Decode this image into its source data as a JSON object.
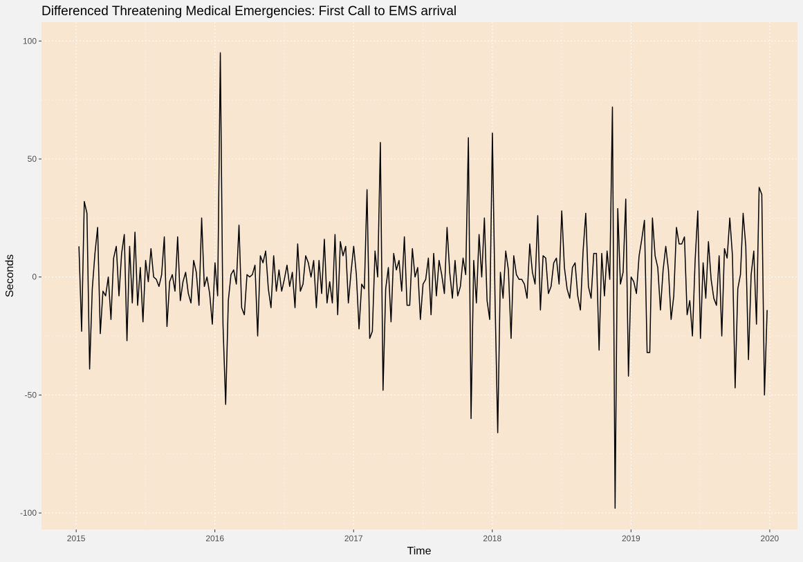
{
  "chart_data": {
    "type": "line",
    "title": "Differenced Threatening Medical Emergencies: First Call to EMS arrival",
    "xlabel": "Time",
    "ylabel": "Seconds",
    "xlim": [
      2014.75,
      2020.2
    ],
    "ylim": [
      -107,
      108
    ],
    "x_ticks": [
      2015,
      2016,
      2017,
      2018,
      2019,
      2020
    ],
    "x_tick_labels": [
      "2015",
      "2016",
      "2017",
      "2018",
      "2019",
      "2020"
    ],
    "y_ticks": [
      100,
      50,
      0,
      -50,
      -100
    ],
    "y_tick_labels": [
      "100",
      "50",
      "0",
      "-50",
      "-100"
    ],
    "grid": true,
    "legend": "none",
    "colors": {
      "panel_background": "#f8e6d1",
      "page_background": "#f2f2f2",
      "grid": "#ffffff",
      "line": "#000000"
    },
    "series": [
      {
        "x_start": 2015.02,
        "x_step": 0.01923,
        "values": [
          13,
          -23,
          32,
          27,
          -39,
          -5,
          10,
          21,
          -24,
          -6,
          -8,
          0,
          -18,
          8,
          13,
          -8,
          10,
          18,
          -27,
          13,
          -11,
          19,
          -12,
          4,
          -19,
          7,
          -2,
          12,
          0,
          -1,
          -4,
          1,
          17,
          -21,
          -2,
          1,
          -6,
          17,
          -10,
          -2,
          2,
          -7,
          -11,
          7,
          2,
          -12,
          25,
          -4,
          0,
          -7,
          -20,
          6,
          -8,
          95,
          -20,
          -54,
          -10,
          1,
          3,
          -3,
          22,
          -13,
          -16,
          1,
          0,
          1,
          5,
          -25,
          9,
          6,
          11,
          -5,
          -13,
          9,
          -6,
          3,
          -6,
          -1,
          5,
          -4,
          2,
          -13,
          14,
          -6,
          -3,
          9,
          6,
          0,
          7,
          -13,
          7,
          -7,
          16,
          -11,
          -2,
          -11,
          18,
          -16,
          15,
          9,
          13,
          -11,
          2,
          13,
          1,
          -22,
          -3,
          -5,
          37,
          -26,
          -23,
          11,
          0,
          57,
          -48,
          -5,
          4,
          -19,
          10,
          3,
          7,
          -6,
          17,
          -12,
          -12,
          12,
          0,
          4,
          -18,
          -3,
          -1,
          8,
          -16,
          10,
          -8,
          7,
          1,
          -7,
          21,
          2,
          -9,
          7,
          -8,
          -4,
          8,
          1,
          59,
          -60,
          7,
          -11,
          18,
          0,
          25,
          -10,
          -18,
          61,
          -10,
          -66,
          2,
          -9,
          11,
          3,
          -26,
          9,
          1,
          -1,
          -1,
          -3,
          -9,
          14,
          2,
          -3,
          26,
          -14,
          9,
          8,
          -7,
          -4,
          6,
          8,
          -3,
          28,
          4,
          -5,
          -9,
          4,
          6,
          -8,
          -14,
          11,
          27,
          -4,
          -9,
          10,
          10,
          -31,
          10,
          -8,
          11,
          -1,
          72,
          -98,
          29,
          -3,
          2,
          33,
          -42,
          0,
          -2,
          -7,
          9,
          16,
          24,
          -32,
          -32,
          25,
          9,
          4,
          -14,
          3,
          13,
          3,
          -18,
          -8,
          21,
          14,
          14,
          17,
          -16,
          -10,
          -25,
          7,
          28,
          -26,
          6,
          -9,
          15,
          -1,
          -9,
          -12,
          9,
          -25,
          12,
          8,
          25,
          9,
          -47,
          -5,
          1,
          27,
          13,
          -35,
          1,
          11,
          -20,
          38,
          35,
          -50,
          -14
        ]
      }
    ]
  }
}
